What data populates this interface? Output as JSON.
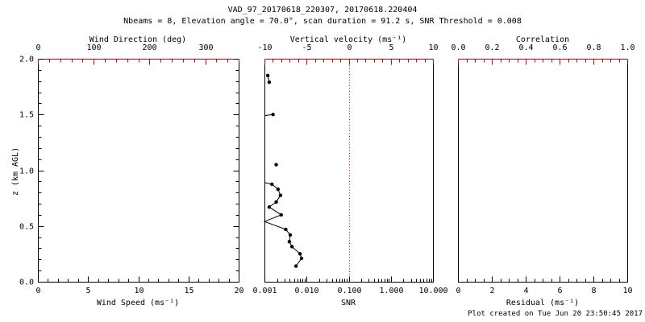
{
  "header": {
    "title": "VAD_97_20170618_220307, 20170618.220404",
    "subtitle": "Nbeams = 8, Elevation angle = 70.0°, scan duration = 91.2 s, SNR Threshold = 0.008"
  },
  "footer": {
    "created_text": "Plot created on Tue Jun 20 23:50:45 2017"
  },
  "colors": {
    "background": "#ffffff",
    "frame": "#000000",
    "data": "#000000",
    "accent_red": "#dd0000"
  },
  "chart_data": {
    "type": "line",
    "title": "VAD_97_20170618_220307, 20170618.220404",
    "subtitle": "Nbeams = 8, Elevation angle = 70.0°, scan duration = 91.2 s, SNR Threshold = 0.008",
    "yaxis": {
      "label": "z (km AGL)",
      "min": 0,
      "max": 2,
      "minor_step": 0.1,
      "majors": [
        {
          "v": 0,
          "label": "0.0"
        },
        {
          "v": 0.5,
          "label": "0.5"
        },
        {
          "v": 1,
          "label": "1.0"
        },
        {
          "v": 1.5,
          "label": "1.5"
        },
        {
          "v": 2,
          "label": "2.0"
        }
      ]
    },
    "panels": [
      {
        "name": "wind",
        "top_axis": {
          "title": "Wind Direction (deg)",
          "color": "#dd0000",
          "scale": "linear",
          "min": 0,
          "max": 360,
          "minor_step": 20,
          "majors": [
            {
              "v": 0,
              "label": "0"
            },
            {
              "v": 100,
              "label": "100"
            },
            {
              "v": 200,
              "label": "200"
            },
            {
              "v": 300,
              "label": "300"
            }
          ]
        },
        "bottom_axis": {
          "title": "Wind Speed (ms⁻¹)",
          "color": "#000000",
          "scale": "linear",
          "min": 0,
          "max": 20,
          "minor_step": 1,
          "majors": [
            {
              "v": 0,
              "label": "0"
            },
            {
              "v": 5,
              "label": "5"
            },
            {
              "v": 10,
              "label": "10"
            },
            {
              "v": 15,
              "label": "15"
            },
            {
              "v": 20,
              "label": "20"
            }
          ]
        },
        "y_ticks_on_side_edges": true,
        "series": []
      },
      {
        "name": "snr",
        "top_axis": {
          "title": "Vertical velocity (ms⁻¹)",
          "color": "#dd0000",
          "scale": "linear",
          "min": -10,
          "max": 10,
          "minor_step": 1,
          "majors": [
            {
              "v": -10,
              "label": "-10"
            },
            {
              "v": -5,
              "label": "-5"
            },
            {
              "v": 0,
              "label": "0"
            },
            {
              "v": 5,
              "label": "5"
            },
            {
              "v": 10,
              "label": "10"
            }
          ]
        },
        "bottom_axis": {
          "title": "SNR",
          "color": "#000000",
          "scale": "log",
          "min": 0.001,
          "max": 10,
          "majors": [
            {
              "v": 0.001,
              "label": "0.001"
            },
            {
              "v": 0.01,
              "label": "0.010"
            },
            {
              "v": 0.1,
              "label": "0.100"
            },
            {
              "v": 1,
              "label": "1.000"
            },
            {
              "v": 10,
              "label": "10.000"
            }
          ]
        },
        "zero_reference_line": {
          "value": 0,
          "axis": "top",
          "color": "#dd0000",
          "style": "dotted"
        },
        "y_ticks_on_side_edges": false,
        "profile": {
          "x_field": "snr",
          "segments": [
            [
              {
                "z": 1.85,
                "snr": 0.0012
              },
              {
                "z": 1.79,
                "snr": 0.0013
              }
            ],
            [
              {
                "z": 1.49,
                "snr": 0.001,
                "clipped": true
              },
              {
                "z": 1.5,
                "snr": 0.0016
              }
            ],
            [
              {
                "z": 0.89,
                "snr": 0.001,
                "clipped": true
              },
              {
                "z": 0.875,
                "snr": 0.0015
              },
              {
                "z": 0.83,
                "snr": 0.0021
              },
              {
                "z": 0.775,
                "snr": 0.0024
              },
              {
                "z": 0.715,
                "snr": 0.0019
              },
              {
                "z": 0.67,
                "snr": 0.0013
              },
              {
                "z": 0.6,
                "snr": 0.0025
              },
              {
                "z": 0.54,
                "snr": 0.001,
                "clipped": true
              },
              {
                "z": 0.47,
                "snr": 0.0032
              },
              {
                "z": 0.42,
                "snr": 0.0041
              },
              {
                "z": 0.36,
                "snr": 0.0039
              },
              {
                "z": 0.315,
                "snr": 0.0045
              },
              {
                "z": 0.25,
                "snr": 0.007
              },
              {
                "z": 0.21,
                "snr": 0.0076
              },
              {
                "z": 0.14,
                "snr": 0.0056
              }
            ]
          ],
          "isolated_points": [
            {
              "z": 1.05,
              "snr": 0.0019
            }
          ]
        }
      },
      {
        "name": "residual",
        "top_axis": {
          "title": "Correlation",
          "color": "#dd0000",
          "scale": "linear",
          "min": 0,
          "max": 1,
          "minor_step": 0.05,
          "majors": [
            {
              "v": 0,
              "label": "0.0"
            },
            {
              "v": 0.2,
              "label": "0.2"
            },
            {
              "v": 0.4,
              "label": "0.4"
            },
            {
              "v": 0.6,
              "label": "0.6"
            },
            {
              "v": 0.8,
              "label": "0.8"
            },
            {
              "v": 1,
              "label": "1.0"
            }
          ]
        },
        "bottom_axis": {
          "title": "Residual (ms⁻¹)",
          "color": "#000000",
          "scale": "linear",
          "min": 0,
          "max": 10,
          "minor_step": 0.5,
          "majors": [
            {
              "v": 0,
              "label": "0"
            },
            {
              "v": 2,
              "label": "2"
            },
            {
              "v": 4,
              "label": "4"
            },
            {
              "v": 6,
              "label": "6"
            },
            {
              "v": 8,
              "label": "8"
            },
            {
              "v": 10,
              "label": "10"
            }
          ]
        },
        "y_ticks_on_side_edges": false,
        "series": []
      }
    ]
  }
}
